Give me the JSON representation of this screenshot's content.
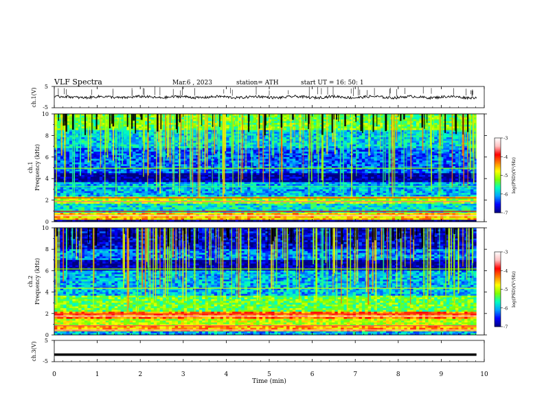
{
  "header": {
    "title": "VLF  Spectra",
    "date": "Mar.6   , 2023",
    "station": "station= ATH",
    "start": "start  UT  =    16: 50: 1"
  },
  "chart_data": [
    {
      "type": "line",
      "panel": "ch1",
      "ylabel": "ch.1(V)",
      "ylim": [
        -5,
        5
      ],
      "yticks": [
        "5",
        "-5"
      ],
      "xlim": [
        0,
        10
      ],
      "series": [
        {
          "approx_level_V": 0.0,
          "color": "#000000"
        }
      ]
    },
    {
      "type": "heatmap",
      "panel": "ch1-spectrogram",
      "ylabel": "ch.1\nFrequency  (kHz)",
      "ylim": [
        0,
        10
      ],
      "yticks": [
        "0",
        "2",
        "4",
        "6",
        "8",
        "10"
      ],
      "xlim": [
        0,
        10
      ],
      "colorbar": {
        "label": "log(PSD)(V²/Hz)",
        "range": [
          -7,
          -3
        ],
        "ticks": [
          "-3",
          "-4",
          "-5",
          "-6",
          "-7"
        ],
        "colormap": [
          "#000080",
          "#0000ff",
          "#00a0ff",
          "#00ffc0",
          "#80ff00",
          "#ffff00",
          "#ff8000",
          "#ff0000",
          "#ffc0c0",
          "#ffffff"
        ]
      },
      "bands": [
        {
          "kHz": [
            0.0,
            0.15
          ],
          "level": -7
        },
        {
          "kHz": [
            0.4,
            0.9
          ],
          "level": -4.5
        },
        {
          "kHz": [
            1.7,
            2.4
          ],
          "level": -5.0
        },
        {
          "kHz": [
            3.6,
            4.5
          ],
          "level": -6.9
        },
        {
          "kHz": [
            8.5,
            10.0
          ],
          "level": -5.2
        }
      ]
    },
    {
      "type": "heatmap",
      "panel": "ch2-spectrogram",
      "ylabel": "ch.2\nFrequency  (kHz)",
      "ylim": [
        0,
        10
      ],
      "yticks": [
        "0",
        "2",
        "4",
        "6",
        "8",
        "10"
      ],
      "xlim": [
        0,
        10
      ],
      "colorbar": {
        "label": "log(PSD)(V²/Hz)",
        "range": [
          -7,
          -3
        ],
        "ticks": [
          "-3",
          "-4",
          "-5",
          "-6",
          "-7"
        ]
      },
      "bands": [
        {
          "kHz": [
            0.3,
            0.9
          ],
          "level": -4.3
        },
        {
          "kHz": [
            1.5,
            2.1
          ],
          "level": -4.2
        },
        {
          "kHz": [
            2.1,
            3.6
          ],
          "level": -5.3
        },
        {
          "kHz": [
            6.0,
            7.0
          ],
          "level": -6.9
        },
        {
          "kHz": [
            8.0,
            10.0
          ],
          "level": -6.8
        }
      ]
    },
    {
      "type": "line",
      "panel": "ch3",
      "ylabel": "ch.3(V)",
      "ylim": [
        -5,
        5
      ],
      "yticks": [
        "5",
        "-5"
      ],
      "xlim": [
        0,
        10
      ],
      "xlabel": "Time  (min)",
      "xticks": [
        "0",
        "1",
        "2",
        "3",
        "4",
        "5",
        "6",
        "7",
        "8",
        "9",
        "10"
      ],
      "series": [
        {
          "approx_level_V": -1.7,
          "color": "#000000"
        }
      ]
    }
  ]
}
